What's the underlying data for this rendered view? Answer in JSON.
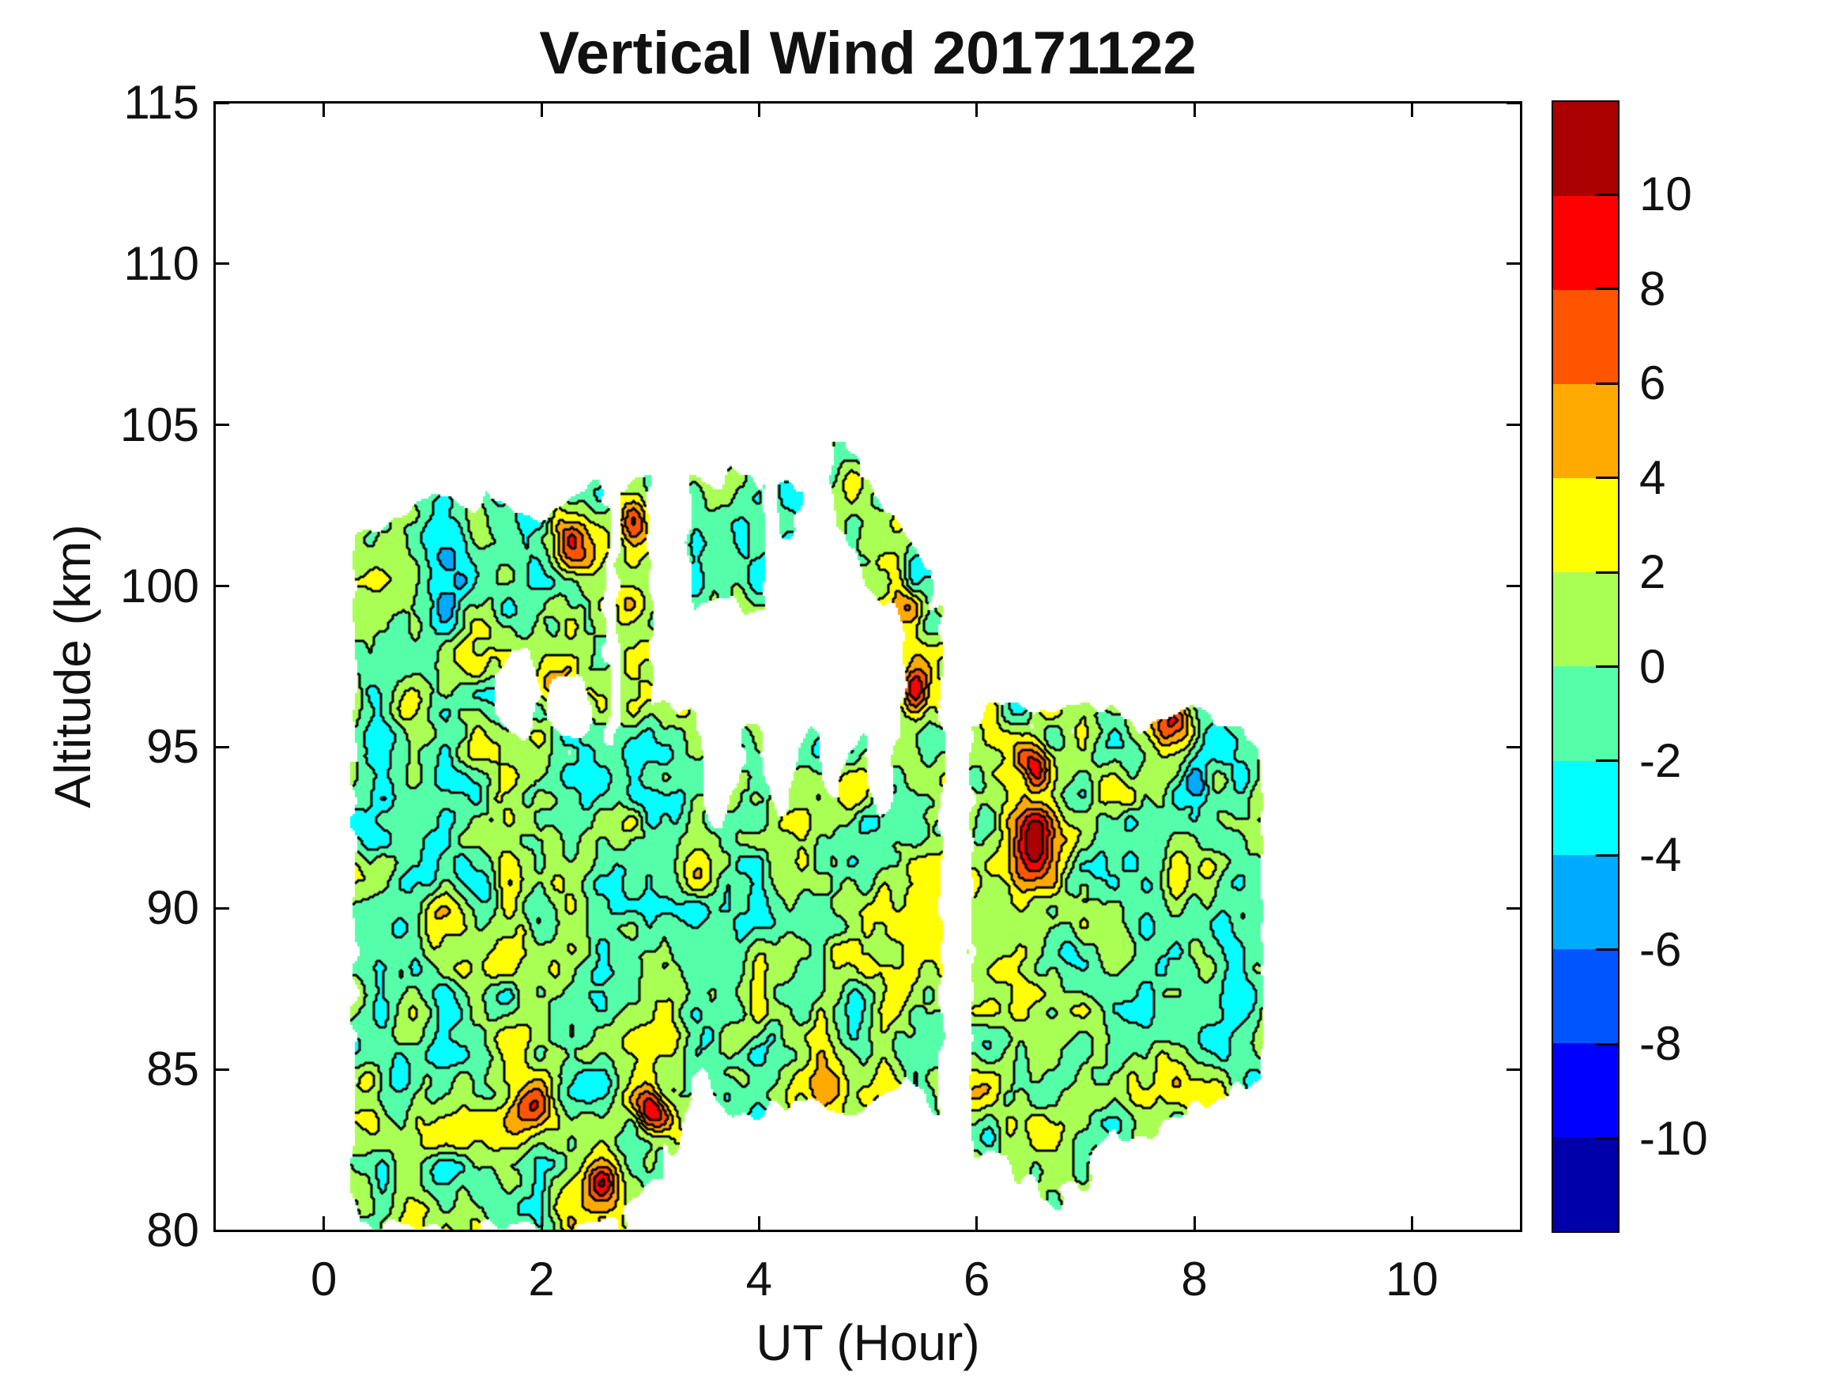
{
  "chart_data": {
    "type": "filled-contour",
    "title": "Vertical Wind 20171122",
    "xlabel": "UT (Hour)",
    "ylabel": "Altitude (km)",
    "xlim": [
      -1,
      11
    ],
    "ylim": [
      80,
      115
    ],
    "xticks": [
      0,
      2,
      4,
      6,
      8,
      10
    ],
    "yticks": [
      80,
      85,
      90,
      95,
      100,
      105,
      110,
      115
    ],
    "grid": false,
    "caxis": [
      -12,
      12
    ],
    "contour_interval": 2,
    "contour_levels": [
      -12,
      -10,
      -8,
      -6,
      -4,
      -2,
      0,
      2,
      4,
      6,
      8,
      10,
      12
    ],
    "colormap_name": "jet-12-band",
    "contour_line_color": "#000000",
    "colorbar": {
      "position": "right",
      "tick_labels": [
        10,
        8,
        6,
        4,
        2,
        0,
        -2,
        -4,
        -6,
        -8,
        -10
      ],
      "colors_top_to_bottom": [
        "#AA0000",
        "#FF0000",
        "#FF5500",
        "#FFAA00",
        "#FFFF00",
        "#AAFF55",
        "#55FFAA",
        "#00FFFF",
        "#00AAFF",
        "#0055FF",
        "#0000FF",
        "#0000AA"
      ]
    },
    "field_summary": {
      "typical_range": [
        -4,
        4
      ],
      "dominant_bands": [
        "-2 to 0",
        "0 to 2"
      ],
      "data_x_range_hours": [
        0.3,
        8.62
      ],
      "data_altitude_range_km": [
        80,
        103.7
      ],
      "description": "Mesospheric vertical wind, mostly within ±2, scattered ±4 cells, isolated ±6 to ±10 extremes, white = no data"
    },
    "coverage": {
      "x_start": 0.28,
      "x_end": 8.62,
      "left_edge_alt_to_x": [
        [
          80,
          0.36
        ],
        [
          81.5,
          0.1
        ],
        [
          92.5,
          0.1
        ],
        [
          94.0,
          0.28
        ],
        [
          104,
          0.3
        ]
      ],
      "bottom_points": [
        [
          0.36,
          80.15
        ],
        [
          1.0,
          80.0
        ],
        [
          2.0,
          80.1
        ],
        [
          2.75,
          80.3
        ],
        [
          3.0,
          81.2
        ],
        [
          3.35,
          83.6
        ],
        [
          3.5,
          85.3
        ],
        [
          3.65,
          83.8
        ],
        [
          3.9,
          83.4
        ],
        [
          4.3,
          83.9
        ],
        [
          4.8,
          83.6
        ],
        [
          5.3,
          84.6
        ],
        [
          5.68,
          83.9
        ],
        [
          5.95,
          82.3
        ],
        [
          6.3,
          82.0
        ],
        [
          6.7,
          80.9
        ],
        [
          7.0,
          81.6
        ],
        [
          7.15,
          82.8
        ],
        [
          7.6,
          83.2
        ],
        [
          8.1,
          83.8
        ],
        [
          8.35,
          84.3
        ],
        [
          8.62,
          84.7
        ]
      ],
      "top_points": [
        [
          0.3,
          101.4
        ],
        [
          0.7,
          102.2
        ],
        [
          1.05,
          103.0
        ],
        [
          1.5,
          102.6
        ],
        [
          1.9,
          102.0
        ],
        [
          2.3,
          102.7
        ],
        [
          2.62,
          103.1
        ],
        [
          2.98,
          103.0
        ],
        [
          3.02,
          96.4
        ],
        [
          5.3,
          96.4
        ],
        [
          5.68,
          96.4
        ],
        [
          5.95,
          95.9
        ],
        [
          6.3,
          96.2
        ],
        [
          6.7,
          95.7
        ],
        [
          7.1,
          96.1
        ],
        [
          7.5,
          95.8
        ],
        [
          7.9,
          96.4
        ],
        [
          8.2,
          95.6
        ],
        [
          8.45,
          95.9
        ],
        [
          8.62,
          94.6
        ]
      ],
      "blob_fingers": [
        {
          "x": 3.65,
          "depth": 3.8,
          "w": 0.14
        },
        {
          "x": 4.2,
          "depth": 3.4,
          "w": 0.13
        },
        {
          "x": 4.68,
          "depth": 3.0,
          "w": 0.12
        },
        {
          "x": 5.12,
          "depth": 3.4,
          "w": 0.12
        }
      ],
      "islands": [
        {
          "name": "A",
          "x": [
            2.71,
            2.98
          ],
          "alt": [
            96.8,
            103.2
          ]
        },
        {
          "name": "B",
          "x": [
            3.36,
            4.04
          ],
          "alt": [
            99.4,
            103.4
          ]
        },
        {
          "name": "C",
          "x": [
            4.16,
            4.42
          ],
          "alt": [
            101.9,
            103.0
          ]
        },
        {
          "name": "D",
          "type": "diag",
          "x": [
            4.68,
            5.6
          ],
          "c0": 103.3,
          "slope": -4.9,
          "halfwidth": 1.5
        },
        {
          "name": "E",
          "x": [
            5.34,
            5.66
          ],
          "alt": [
            96.0,
            99.6
          ]
        }
      ],
      "holes": [
        {
          "x": 1.75,
          "alt": 96.7,
          "rx": 0.22,
          "ry": 1.3
        },
        {
          "x": 2.25,
          "alt": 96.1,
          "rx": 0.2,
          "ry": 1.1
        }
      ],
      "gaps": [
        {
          "x": [
            2.6,
            2.71
          ],
          "above_alt": 95.2
        },
        {
          "x": [
            5.68,
            5.95
          ]
        }
      ]
    },
    "hotspots": [
      {
        "x": 1.9,
        "alt": 83.6,
        "sx": 0.14,
        "sa": 0.55,
        "amp": 7.5
      },
      {
        "x": 3.02,
        "alt": 83.8,
        "sx": 0.12,
        "sa": 0.45,
        "amp": 8.5
      },
      {
        "x": 2.55,
        "alt": 81.5,
        "sx": 0.14,
        "sa": 0.5,
        "amp": 6.0
      },
      {
        "x": 5.42,
        "alt": 96.8,
        "sx": 0.1,
        "sa": 0.5,
        "amp": 8.5
      },
      {
        "x": 5.38,
        "alt": 99.3,
        "sx": 0.12,
        "sa": 0.5,
        "amp": 6.0
      },
      {
        "x": 6.52,
        "alt": 92.1,
        "sx": 0.13,
        "sa": 0.7,
        "amp": 8.5
      },
      {
        "x": 6.55,
        "alt": 94.4,
        "sx": 0.12,
        "sa": 0.5,
        "amp": 7.0
      },
      {
        "x": 6.38,
        "alt": 93.5,
        "sx": 0.22,
        "sa": 1.8,
        "amp": 3.5
      },
      {
        "x": 7.8,
        "alt": 95.8,
        "sx": 0.12,
        "sa": 0.45,
        "amp": 7.0
      },
      {
        "x": 8.05,
        "alt": 93.8,
        "sx": 0.1,
        "sa": 0.5,
        "amp": -7.5
      },
      {
        "x": 2.3,
        "alt": 101.3,
        "sx": 0.15,
        "sa": 0.6,
        "amp": 6.0
      },
      {
        "x": 2.85,
        "alt": 102.0,
        "sx": 0.1,
        "sa": 0.5,
        "amp": 6.0
      },
      {
        "x": 2.82,
        "alt": 99.4,
        "sx": 0.1,
        "sa": 0.5,
        "amp": 6.0
      },
      {
        "x": 2.1,
        "alt": 96.9,
        "sx": 0.12,
        "sa": 0.5,
        "amp": 6.0
      },
      {
        "x": 1.15,
        "alt": 100.4,
        "sx": 0.18,
        "sa": 1.2,
        "amp": -5.0
      },
      {
        "x": 3.12,
        "alt": 92.6,
        "sx": 0.15,
        "sa": 1.0,
        "amp": -4.5
      },
      {
        "x": 4.6,
        "alt": 84.3,
        "sx": 0.15,
        "sa": 0.6,
        "amp": 5.5
      },
      {
        "x": 0.7,
        "alt": 84.5,
        "sx": 0.12,
        "sa": 0.8,
        "amp": -4.5
      },
      {
        "x": 8.35,
        "alt": 88.5,
        "sx": 0.15,
        "sa": 1.2,
        "amp": -4.0
      },
      {
        "x": 1.45,
        "alt": 90.3,
        "sx": 0.12,
        "sa": 0.8,
        "amp": -4.5
      }
    ],
    "noise": {
      "scale1": [
        3.4,
        0.75
      ],
      "amp1": 3.1,
      "scale2": [
        7.0,
        1.5
      ],
      "amp2": 1.6,
      "bias_base": 0.55,
      "bias_alt_coef": 0.028,
      "offsets": [
        11.3,
        29.7,
        53.1,
        7.9
      ],
      "edge_jitter_h": 0.1,
      "edge_jitter_alt": 1.0
    }
  }
}
